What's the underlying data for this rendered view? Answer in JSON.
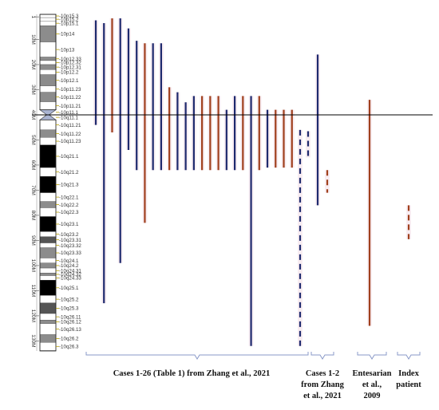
{
  "chromosome": {
    "bands": [
      {
        "name": "10p15.3",
        "start": 0,
        "end": 1.3,
        "stain": "white"
      },
      {
        "name": "10p15.2",
        "start": 1.3,
        "end": 2.6,
        "stain": "white"
      },
      {
        "name": "10p15.1",
        "start": 2.6,
        "end": 4.5,
        "stain": "white"
      },
      {
        "name": "10p14",
        "start": 4.5,
        "end": 11,
        "stain": "gray"
      },
      {
        "name": "10p13",
        "start": 11,
        "end": 17,
        "stain": "white"
      },
      {
        "name": "10p12.33",
        "start": 17,
        "end": 18.4,
        "stain": "gray"
      },
      {
        "name": "10p12.32",
        "start": 18.4,
        "end": 20,
        "stain": "white"
      },
      {
        "name": "10p12.31",
        "start": 20,
        "end": 22,
        "stain": "gray"
      },
      {
        "name": "10p12.2",
        "start": 22,
        "end": 24,
        "stain": "white"
      },
      {
        "name": "10p12.1",
        "start": 24,
        "end": 28.5,
        "stain": "gray"
      },
      {
        "name": "10p11.23",
        "start": 28.5,
        "end": 31,
        "stain": "white"
      },
      {
        "name": "10p11.22",
        "start": 31,
        "end": 34.8,
        "stain": "gray"
      },
      {
        "name": "10p11.21",
        "start": 34.8,
        "end": 38,
        "stain": "white"
      },
      {
        "name": "10p11.1",
        "start": 38,
        "end": 40,
        "stain": "centro"
      },
      {
        "name": "10q11.1",
        "start": 40,
        "end": 42,
        "stain": "centro"
      },
      {
        "name": "10q11.21",
        "start": 42,
        "end": 46,
        "stain": "white"
      },
      {
        "name": "10q11.22",
        "start": 46,
        "end": 49,
        "stain": "gray"
      },
      {
        "name": "10q11.23",
        "start": 49,
        "end": 52,
        "stain": "white"
      },
      {
        "name": "10q21.1",
        "start": 52,
        "end": 61,
        "stain": "black"
      },
      {
        "name": "10q21.2",
        "start": 61,
        "end": 64.5,
        "stain": "white"
      },
      {
        "name": "10q21.3",
        "start": 64.5,
        "end": 71,
        "stain": "black"
      },
      {
        "name": "10q22.1",
        "start": 71,
        "end": 74.5,
        "stain": "white"
      },
      {
        "name": "10q22.2",
        "start": 74.5,
        "end": 77,
        "stain": "gray"
      },
      {
        "name": "10q22.3",
        "start": 77,
        "end": 80.5,
        "stain": "white"
      },
      {
        "name": "10q23.1",
        "start": 80.5,
        "end": 86.5,
        "stain": "black"
      },
      {
        "name": "10q23.2",
        "start": 86.5,
        "end": 88.5,
        "stain": "white"
      },
      {
        "name": "10q23.31",
        "start": 88.5,
        "end": 91,
        "stain": "dark"
      },
      {
        "name": "10q23.32",
        "start": 91,
        "end": 92.9,
        "stain": "white"
      },
      {
        "name": "10q23.33",
        "start": 92.9,
        "end": 97,
        "stain": "gray"
      },
      {
        "name": "10q24.1",
        "start": 97,
        "end": 99,
        "stain": "white"
      },
      {
        "name": "10q24.2",
        "start": 99,
        "end": 101,
        "stain": "gray"
      },
      {
        "name": "10q24.31",
        "start": 101,
        "end": 103,
        "stain": "white"
      },
      {
        "name": "10q24.32",
        "start": 103,
        "end": 104,
        "stain": "gray"
      },
      {
        "name": "10q24.33",
        "start": 104,
        "end": 105.8,
        "stain": "white"
      },
      {
        "name": "10q25.1",
        "start": 105.8,
        "end": 111.9,
        "stain": "black"
      },
      {
        "name": "10q25.2",
        "start": 111.9,
        "end": 114.9,
        "stain": "white"
      },
      {
        "name": "10q25.3",
        "start": 114.9,
        "end": 119.1,
        "stain": "dark"
      },
      {
        "name": "10q26.11",
        "start": 119.1,
        "end": 121.7,
        "stain": "white"
      },
      {
        "name": "10q26.12",
        "start": 121.7,
        "end": 123.1,
        "stain": "gray"
      },
      {
        "name": "10q26.13",
        "start": 123.1,
        "end": 127.5,
        "stain": "white"
      },
      {
        "name": "10q26.2",
        "start": 127.5,
        "end": 130.6,
        "stain": "gray"
      },
      {
        "name": "10q26.3",
        "start": 130.6,
        "end": 133.8,
        "stain": "white"
      }
    ],
    "megabase_ticks": [
      "1",
      "10M",
      "20M",
      "30M",
      "40M",
      "50M",
      "60M",
      "70M",
      "80M",
      "90M",
      "100M",
      "110M",
      "120M",
      "130M"
    ],
    "megabase_tick_values": [
      1,
      10,
      20,
      30,
      40,
      50,
      60,
      70,
      80,
      90,
      100,
      110,
      120,
      130
    ],
    "range_mb": [
      0,
      134
    ],
    "centromere_mb": 40
  },
  "colors": {
    "navy": "#1e2a6e",
    "brown": "#a0401e",
    "bracket": "#8a9ac8",
    "label_highlight": "#b8a000",
    "band_gray": "#8c8c8c",
    "band_dark": "#555555",
    "band_black": "#000000",
    "band_white": "#ffffff",
    "band_centro": "#aab4d2"
  },
  "segments": [
    {
      "group": 0,
      "start": 2.4,
      "end": 44.0,
      "color": "navy",
      "dashed": false
    },
    {
      "group": 0,
      "start": 3.5,
      "end": 115.0,
      "color": "navy",
      "dashed": false
    },
    {
      "group": 0,
      "start": 1.6,
      "end": 47.0,
      "color": "brown",
      "dashed": false
    },
    {
      "group": 0,
      "start": 1.6,
      "end": 99.0,
      "color": "navy",
      "dashed": false
    },
    {
      "group": 0,
      "start": 5.6,
      "end": 54.0,
      "color": "navy",
      "dashed": false
    },
    {
      "group": 0,
      "start": 10.5,
      "end": 62.0,
      "color": "navy",
      "dashed": false
    },
    {
      "group": 0,
      "start": 11.5,
      "end": 83.0,
      "color": "brown",
      "dashed": false
    },
    {
      "group": 0,
      "start": 11.5,
      "end": 62.0,
      "color": "navy",
      "dashed": false
    },
    {
      "group": 0,
      "start": 11.5,
      "end": 62.0,
      "color": "navy",
      "dashed": false
    },
    {
      "group": 0,
      "start": 29.0,
      "end": 62.0,
      "color": "brown",
      "dashed": false
    },
    {
      "group": 0,
      "start": 31.0,
      "end": 62.0,
      "color": "navy",
      "dashed": false
    },
    {
      "group": 0,
      "start": 35.0,
      "end": 62.0,
      "color": "navy",
      "dashed": false
    },
    {
      "group": 0,
      "start": 32.5,
      "end": 62.0,
      "color": "navy",
      "dashed": false
    },
    {
      "group": 0,
      "start": 32.5,
      "end": 62.0,
      "color": "brown",
      "dashed": false
    },
    {
      "group": 0,
      "start": 32.5,
      "end": 62.0,
      "color": "brown",
      "dashed": false
    },
    {
      "group": 0,
      "start": 32.5,
      "end": 62.0,
      "color": "brown",
      "dashed": false
    },
    {
      "group": 0,
      "start": 38.0,
      "end": 62.0,
      "color": "navy",
      "dashed": false
    },
    {
      "group": 0,
      "start": 32.5,
      "end": 62.0,
      "color": "navy",
      "dashed": false
    },
    {
      "group": 0,
      "start": 32.5,
      "end": 62.0,
      "color": "brown",
      "dashed": false
    },
    {
      "group": 0,
      "start": 32.5,
      "end": 132.0,
      "color": "navy",
      "dashed": false
    },
    {
      "group": 0,
      "start": 32.5,
      "end": 62.0,
      "color": "brown",
      "dashed": false
    },
    {
      "group": 0,
      "start": 38.0,
      "end": 61.0,
      "color": "navy",
      "dashed": false
    },
    {
      "group": 0,
      "start": 38.0,
      "end": 61.0,
      "color": "brown",
      "dashed": false
    },
    {
      "group": 0,
      "start": 38.0,
      "end": 61.0,
      "color": "brown",
      "dashed": false
    },
    {
      "group": 0,
      "start": 38.0,
      "end": 61.0,
      "color": "brown",
      "dashed": false
    },
    {
      "group": 0,
      "start": 46.0,
      "end": 132.0,
      "color": "navy",
      "dashed": true
    },
    {
      "group": 1,
      "start": 46.5,
      "end": 57.0,
      "color": "navy",
      "dashed": true
    },
    {
      "group": 1,
      "start": 16.0,
      "end": 76.0,
      "color": "navy",
      "dashed": false
    },
    {
      "group": 1,
      "start": 62.0,
      "end": 71.0,
      "color": "brown",
      "dashed": true
    },
    {
      "group": 2,
      "start": 34.0,
      "end": 124.0,
      "color": "brown",
      "dashed": false
    },
    {
      "group": 3,
      "start": 76.0,
      "end": 89.5,
      "color": "brown",
      "dashed": true
    }
  ],
  "groups": [
    {
      "lines": [
        "Cases 1-26 (Table 1)  from Zhang et al., 2021"
      ]
    },
    {
      "lines": [
        "Cases 1-2",
        "from Zhang",
        "et al., 2021"
      ]
    },
    {
      "lines": [
        "Entesarian",
        "et al.,",
        "2009"
      ]
    },
    {
      "lines": [
        "Index",
        "patient"
      ]
    }
  ]
}
